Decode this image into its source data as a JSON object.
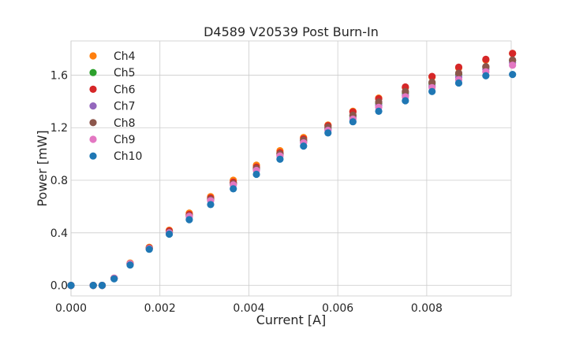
{
  "chart_data": {
    "type": "scatter",
    "title": "D4589 V20539 Post Burn-In",
    "xlabel": "Current [A]",
    "ylabel": "Power [mW]",
    "xlim": [
      0.0,
      0.0099
    ],
    "ylim": [
      -0.08,
      1.86
    ],
    "xticks": [
      0.0,
      0.002,
      0.004,
      0.006,
      0.008
    ],
    "xtick_labels": [
      "0.000",
      "0.002",
      "0.004",
      "0.006",
      "0.008"
    ],
    "yticks": [
      0.0,
      0.4,
      0.8,
      1.2,
      1.6
    ],
    "ytick_labels": [
      "0.0",
      "0.4",
      "0.8",
      "1.2",
      "1.6"
    ],
    "grid": true,
    "legend_position": "upper-left",
    "x": [
      0.0,
      0.0005,
      0.0007,
      0.00097,
      0.00133,
      0.00176,
      0.00221,
      0.00266,
      0.00314,
      0.00365,
      0.00417,
      0.0047,
      0.00523,
      0.00578,
      0.00634,
      0.00692,
      0.00752,
      0.00812,
      0.00872,
      0.00933,
      0.00993
    ],
    "series": [
      {
        "name": "Ch4",
        "color": "#ff7f0e",
        "values": [
          0.0,
          0.0,
          0.0,
          0.055,
          0.17,
          0.29,
          0.42,
          0.55,
          0.675,
          0.8,
          0.915,
          1.025,
          1.125,
          1.22,
          1.325,
          1.425,
          1.505,
          1.585,
          1.655,
          1.715,
          1.765
        ]
      },
      {
        "name": "Ch5",
        "color": "#2ca02c",
        "values": [
          0.0,
          0.0,
          0.0,
          0.055,
          0.165,
          0.285,
          0.41,
          0.535,
          0.66,
          0.78,
          0.89,
          1.0,
          1.1,
          1.195,
          1.29,
          1.385,
          1.465,
          1.535,
          1.605,
          1.66,
          1.71
        ]
      },
      {
        "name": "Ch6",
        "color": "#d62728",
        "values": [
          0.0,
          0.0,
          0.0,
          0.055,
          0.165,
          0.285,
          0.415,
          0.54,
          0.665,
          0.785,
          0.9,
          1.01,
          1.115,
          1.215,
          1.32,
          1.42,
          1.51,
          1.59,
          1.66,
          1.72,
          1.765
        ]
      },
      {
        "name": "Ch7",
        "color": "#9467bd",
        "values": [
          0.0,
          0.0,
          0.0,
          0.055,
          0.165,
          0.28,
          0.4,
          0.525,
          0.65,
          0.77,
          0.88,
          0.99,
          1.09,
          1.185,
          1.275,
          1.37,
          1.445,
          1.515,
          1.585,
          1.645,
          1.695
        ]
      },
      {
        "name": "Ch8",
        "color": "#8c564b",
        "values": [
          0.0,
          0.0,
          0.0,
          0.055,
          0.165,
          0.28,
          0.405,
          0.53,
          0.655,
          0.775,
          0.89,
          1.0,
          1.105,
          1.205,
          1.295,
          1.395,
          1.475,
          1.545,
          1.615,
          1.665,
          1.715
        ]
      },
      {
        "name": "Ch9",
        "color": "#e377c2",
        "values": [
          0.0,
          0.0,
          0.0,
          0.055,
          0.165,
          0.28,
          0.4,
          0.525,
          0.645,
          0.765,
          0.875,
          0.985,
          1.085,
          1.18,
          1.265,
          1.355,
          1.435,
          1.505,
          1.565,
          1.625,
          1.675
        ]
      },
      {
        "name": "Ch10",
        "color": "#1f77b4",
        "values": [
          0.0,
          0.0,
          0.0,
          0.05,
          0.155,
          0.275,
          0.39,
          0.5,
          0.615,
          0.735,
          0.845,
          0.96,
          1.06,
          1.16,
          1.245,
          1.325,
          1.405,
          1.475,
          1.54,
          1.595,
          1.605
        ]
      }
    ]
  }
}
